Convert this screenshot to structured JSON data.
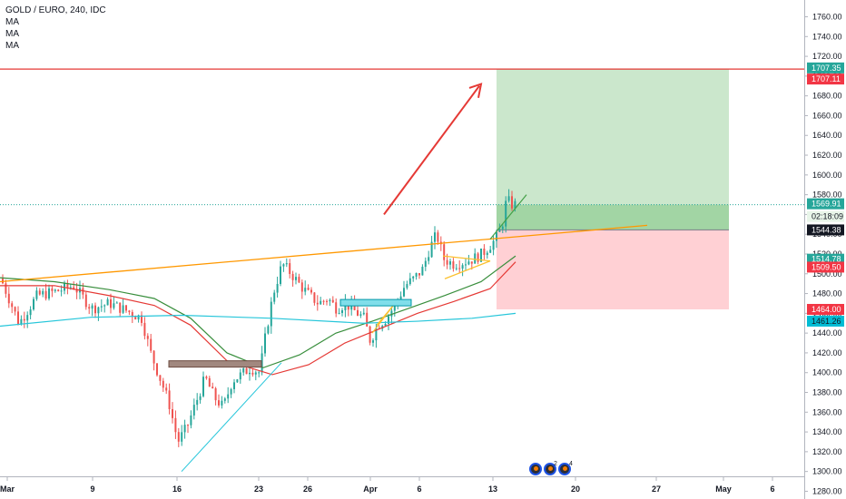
{
  "legend": {
    "symbol": "GOLD / EURO, 240, IDC",
    "ma1": "MA",
    "ma2": "MA",
    "ma3": "MA"
  },
  "chart_data": {
    "type": "candlestick",
    "y_range": [
      1275,
      1770
    ],
    "y_ticks": [
      "1760.00",
      "1740.00",
      "1720.00",
      "1700.00",
      "1680.00",
      "1660.00",
      "1640.00",
      "1620.00",
      "1600.00",
      "1580.00",
      "1560.00",
      "1540.00",
      "1520.00",
      "1500.00",
      "1480.00",
      "1460.00",
      "1440.00",
      "1420.00",
      "1400.00",
      "1380.00",
      "1360.00",
      "1340.00",
      "1320.00",
      "1300.00",
      "1280.00"
    ],
    "x_labels": [
      "Mar",
      "9",
      "16",
      "23",
      "26",
      "Apr",
      "6",
      "13",
      "20",
      "27",
      "May",
      "6"
    ],
    "price_badges": [
      {
        "value": "1707.35",
        "bg": "#26a69a",
        "color": "#ffffff",
        "name": "target-price"
      },
      {
        "value": "1707.11",
        "bg": "#f23645",
        "color": "#ffffff",
        "name": "resistance-price"
      },
      {
        "value": "1569.91",
        "bg": "#26a69a",
        "color": "#ffffff",
        "name": "last-price"
      },
      {
        "value": "02:18:09",
        "bg": "#e8f5e9",
        "color": "#131722",
        "name": "countdown"
      },
      {
        "value": "1544.38",
        "bg": "#131722",
        "color": "#ffffff",
        "name": "entry-price"
      },
      {
        "value": "1514.78",
        "bg": "#26a69a",
        "color": "#ffffff",
        "name": "ma-fast-price"
      },
      {
        "value": "1509.50",
        "bg": "#f23645",
        "color": "#ffffff",
        "name": "ma-mid-price"
      },
      {
        "value": "1464.00",
        "bg": "#f23645",
        "color": "#ffffff",
        "name": "stop-price"
      },
      {
        "value": "1461.26",
        "bg": "#00bcd4",
        "color": "#131722",
        "name": "ma-slow-price"
      }
    ],
    "last_price": 1569.91,
    "resistance": 1707.11,
    "position": {
      "entry": 1544.38,
      "target": 1707.35,
      "stop": 1464.0
    },
    "events": [
      "2",
      "4"
    ],
    "colors": {
      "up": "#26a69a",
      "down": "#ef5350",
      "ma_fast": "#388e3c",
      "ma_mid": "#e53935",
      "ma_slow": "#26c6da",
      "trend": "#ff9800",
      "resistance": "#e53935"
    }
  }
}
